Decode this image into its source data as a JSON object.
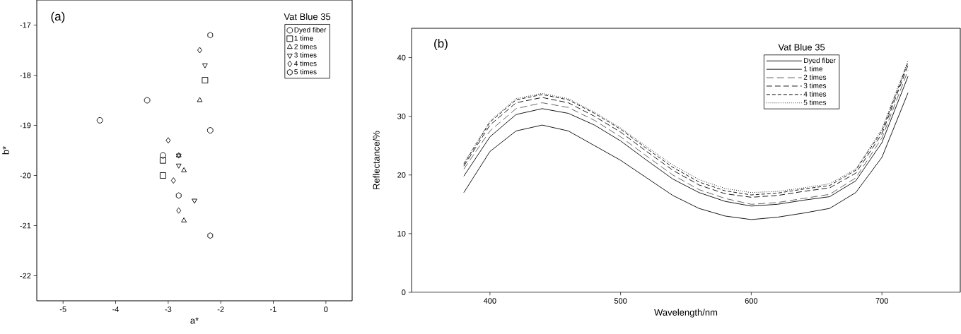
{
  "chart_data": [
    {
      "type": "scatter",
      "legend_title": "Vat Blue 35",
      "xlabel": "a*",
      "ylabel": "b*",
      "annotations": [
        "(a)"
      ],
      "legend": "top right",
      "xlim": [
        -5.5,
        0.5
      ],
      "ylim": [
        -22.5,
        -16.5
      ],
      "xticks": [
        -5,
        -4,
        -3,
        -2,
        -1,
        0
      ],
      "yticks": [
        -22,
        -21,
        -20,
        -19,
        -18,
        -17
      ],
      "series": [
        {
          "name": "Dyed fiber",
          "color": "#000000",
          "marker": "circle",
          "x": [
            -3.4,
            -4.3,
            -2.2,
            -3.1
          ],
          "values": [
            -18.5,
            -18.9,
            -19.1,
            -19.6
          ]
        },
        {
          "name": "1 time",
          "color": "#000000",
          "marker": "square",
          "x": [
            -2.3,
            -3.1,
            -3.1
          ],
          "values": [
            -18.1,
            -19.7,
            -20.0
          ]
        },
        {
          "name": "2 times",
          "color": "#000000",
          "marker": "triangle",
          "x": [
            -2.4,
            -2.7,
            -2.7,
            -2.8
          ],
          "values": [
            -18.5,
            -19.9,
            -20.9,
            -19.6
          ]
        },
        {
          "name": "3 times",
          "color": "#000000",
          "marker": "triangle-down",
          "x": [
            -2.3,
            -2.8,
            -2.5,
            -2.8
          ],
          "values": [
            -17.8,
            -19.8,
            -20.5,
            -19.6
          ]
        },
        {
          "name": "4 times",
          "color": "#000000",
          "marker": "diamond",
          "x": [
            -2.4,
            -3.0,
            -2.9,
            -2.8
          ],
          "values": [
            -17.5,
            -19.3,
            -20.1,
            -20.7
          ]
        },
        {
          "name": "5 times",
          "color": "#000000",
          "x": [
            -2.2,
            -2.8,
            -2.2
          ],
          "values": [
            -17.2,
            -20.4,
            -21.2
          ]
        }
      ]
    },
    {
      "type": "line",
      "legend_title": "Vat Blue 35",
      "xlabel": "Wavelength/nm",
      "ylabel": "Reflectance/%",
      "annotations": [
        "(b)"
      ],
      "legend": "top right",
      "xlim": [
        340,
        760
      ],
      "ylim": [
        0,
        45
      ],
      "xticks": [
        400,
        500,
        600,
        700
      ],
      "yticks": [
        0,
        10,
        20,
        30,
        40
      ],
      "x": [
        380,
        400,
        420,
        440,
        460,
        480,
        500,
        520,
        540,
        560,
        580,
        600,
        620,
        640,
        660,
        680,
        700,
        720
      ],
      "series": [
        {
          "name": "Dyed fiber",
          "color": "#000000",
          "line_style": "solid",
          "values": [
            17,
            24,
            27.5,
            28.5,
            27.5,
            25,
            22.5,
            19.5,
            16.5,
            14.3,
            13,
            12.4,
            12.8,
            13.5,
            14.3,
            17,
            23,
            34
          ]
        },
        {
          "name": "1 time",
          "color": "#000000",
          "line_style": "solid",
          "values": [
            19.8,
            26.5,
            30.3,
            31.3,
            30.5,
            28.5,
            25.8,
            22.5,
            19.3,
            17,
            15.5,
            14.7,
            15,
            15.7,
            16.3,
            19,
            25.5,
            36.8
          ]
        },
        {
          "name": "2 times",
          "color": "#555555",
          "line_style": "dashed",
          "values": [
            21,
            27.5,
            31.3,
            32.3,
            31.5,
            29.3,
            26.5,
            23.2,
            20,
            17.5,
            16,
            15,
            15.3,
            16,
            16.7,
            19.5,
            26.3,
            37.8
          ]
        },
        {
          "name": "3 times",
          "color": "#000000",
          "line_style": "dashed",
          "values": [
            21.5,
            28.5,
            32.3,
            33.2,
            32.3,
            30,
            27.3,
            24,
            20.8,
            18.3,
            16.8,
            16.2,
            16.5,
            17.2,
            17.8,
            20.3,
            27,
            38.7
          ]
        },
        {
          "name": "4 times",
          "color": "#000000",
          "line_style": "dashed",
          "values": [
            21.8,
            29,
            32.8,
            33.7,
            32.8,
            30.5,
            27.8,
            24.5,
            21.3,
            18.8,
            17.3,
            16.6,
            16.9,
            17.6,
            18.2,
            20.8,
            27.5,
            39.2
          ]
        },
        {
          "name": "5 times",
          "color": "#000000",
          "line_style": "dotted",
          "values": [
            22,
            29.2,
            33,
            33.9,
            33,
            30.7,
            28,
            24.8,
            21.7,
            19.2,
            17.7,
            17,
            17.2,
            17.8,
            18.5,
            21,
            27.8,
            39.5
          ]
        }
      ]
    }
  ]
}
